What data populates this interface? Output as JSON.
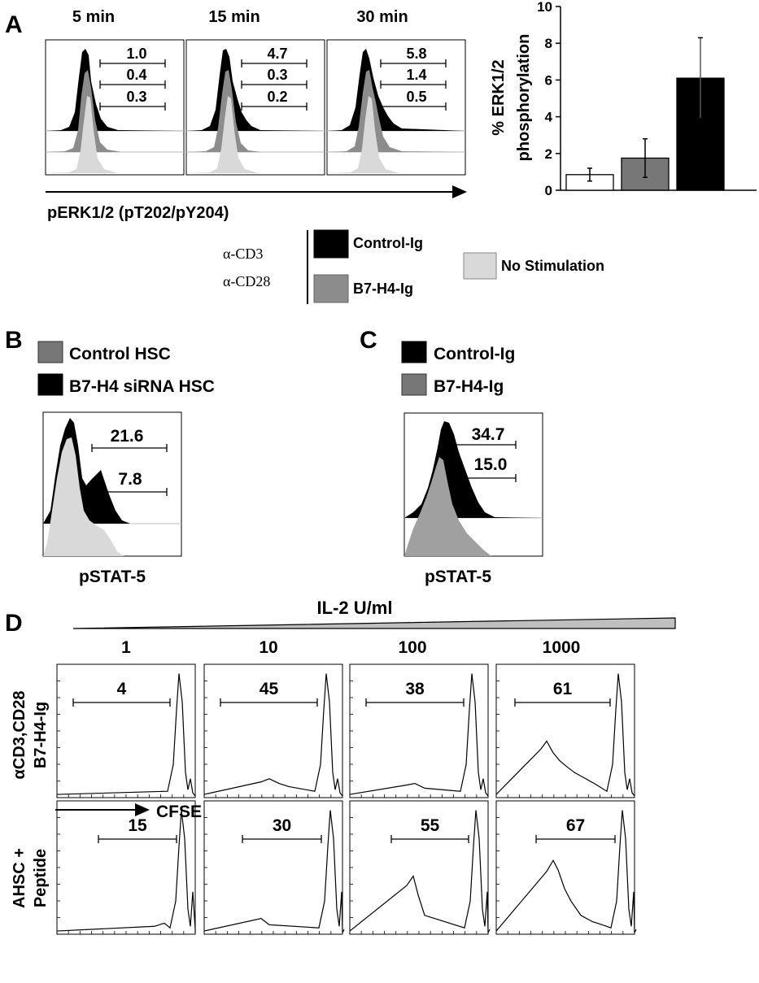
{
  "panel_a": {
    "letter": "A",
    "histograms": [
      {
        "time": "5 min",
        "values": [
          "1.0",
          "0.4",
          "0.3"
        ]
      },
      {
        "time": "15 min",
        "values": [
          "4.7",
          "0.3",
          "0.2"
        ]
      },
      {
        "time": "30 min",
        "values": [
          "5.8",
          "1.4",
          "0.5"
        ]
      }
    ],
    "xlabel": "pERK1/2 (pT202/pY204)",
    "legend": {
      "stim1": "α-CD3",
      "stim2": "α-CD28",
      "control": "Control-Ig",
      "b7h4": "B7-H4-Ig",
      "nostim": "No Stimulation"
    },
    "colors": {
      "control": "#000000",
      "b7h4": "#8c8c8c",
      "nostim": "#d9d9d9"
    }
  },
  "chart_data": {
    "type": "bar",
    "ylabel_line1": "% ERK1/2",
    "ylabel_line2": "phosphorylation",
    "ylim": [
      0,
      10
    ],
    "yticks": [
      "0",
      "2",
      "4",
      "6",
      "8",
      "10"
    ],
    "categories": [
      "",
      "",
      ""
    ],
    "values": [
      0.85,
      1.75,
      6.1
    ],
    "errors": [
      0.35,
      1.05,
      2.2
    ],
    "colors": [
      "#ffffff",
      "#777777",
      "#000000"
    ]
  },
  "panel_b": {
    "letter": "B",
    "legend": [
      "Control HSC",
      "B7-H4 siRNA HSC"
    ],
    "values": [
      "21.6",
      "7.8"
    ],
    "xlabel": "pSTAT-5"
  },
  "panel_c": {
    "letter": "C",
    "legend": [
      "Control-Ig",
      "B7-H4-Ig"
    ],
    "values": [
      "34.7",
      "15.0"
    ],
    "xlabel": "pSTAT-5"
  },
  "panel_d": {
    "letter": "D",
    "title": "IL-2 U/ml",
    "doses": [
      "1",
      "10",
      "100",
      "1000"
    ],
    "row1_label_a": "αCD3,CD28",
    "row1_label_b": "B7-H4-Ig",
    "row2_label_a": "AHSC +",
    "row2_label_b": "Peptide",
    "row1_values": [
      "4",
      "45",
      "38",
      "61"
    ],
    "row2_values": [
      "15",
      "30",
      "55",
      "67"
    ],
    "xlabel": "CFSE"
  }
}
